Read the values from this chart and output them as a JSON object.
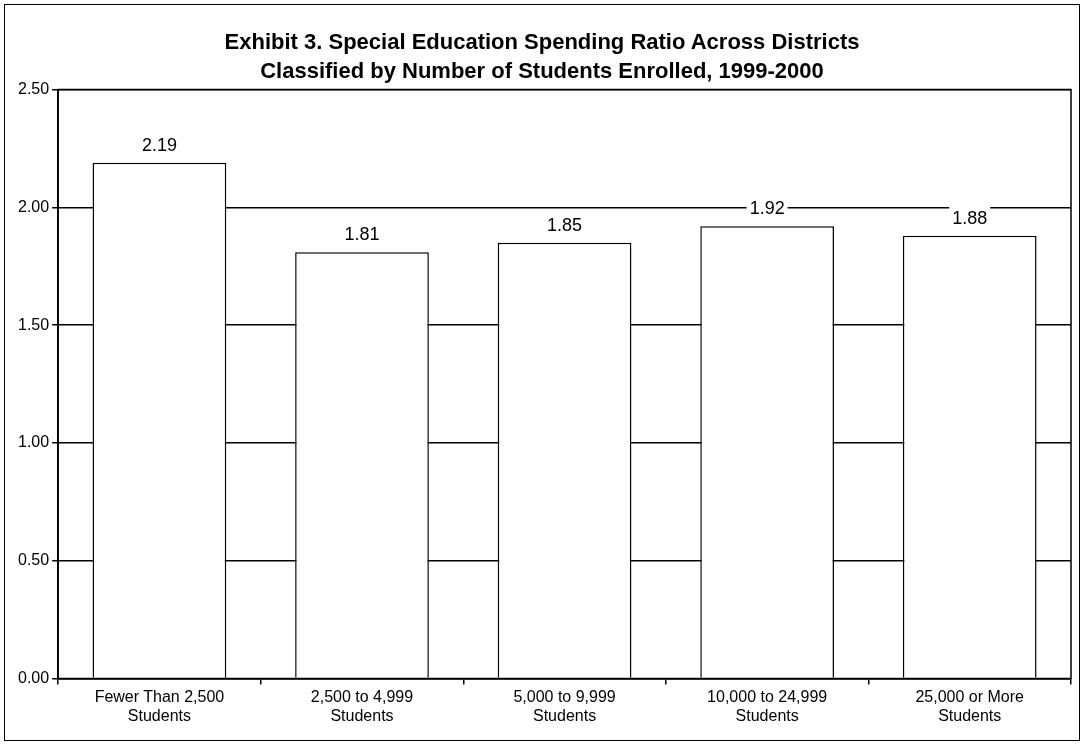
{
  "chart_data": {
    "type": "bar",
    "title": "Exhibit 3. Special Education Spending Ratio Across Districts Classified by Number of Students Enrolled, 1999-2000",
    "categories": [
      "Fewer Than 2,500 Students",
      "2,500 to 4,999 Students",
      "5,000 to 9,999 Students",
      "10,000 to 24,999 Students",
      "25,000 or More Students"
    ],
    "values": [
      2.19,
      1.81,
      1.85,
      1.92,
      1.88
    ],
    "color": "#ffffff",
    "ylim": [
      0,
      2.5
    ],
    "yticks": [
      {
        "value": 0,
        "label": "0.00"
      },
      {
        "value": 0.5,
        "label": "0.50"
      },
      {
        "value": 1,
        "label": "1.00"
      },
      {
        "value": 1.5,
        "label": "1.50"
      },
      {
        "value": 2,
        "label": "2.00"
      },
      {
        "value": 2.5,
        "label": "2.50"
      }
    ],
    "grid": "y",
    "data_labels": true
  }
}
